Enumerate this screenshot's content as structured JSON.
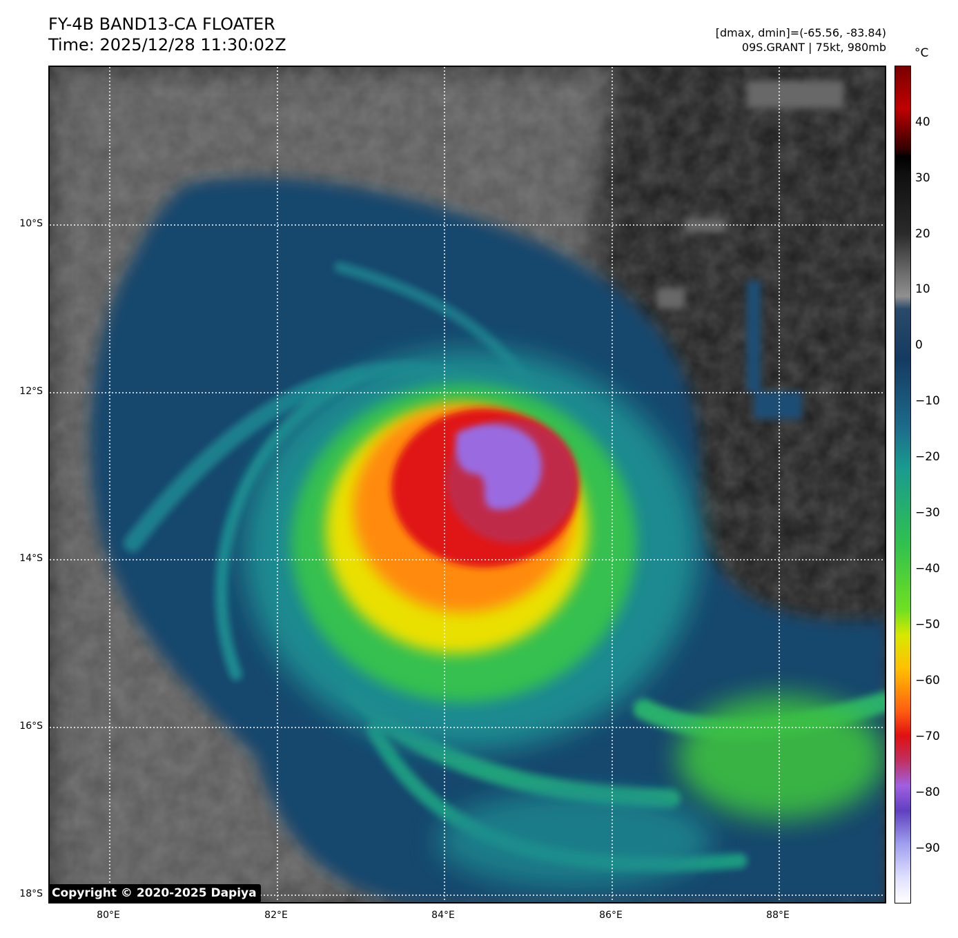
{
  "header": {
    "title_line1": "FY-4B BAND13-CA FLOATER",
    "title_line2": "Time: 2025/12/28 11:30:02Z",
    "stats_line": "[dmax, dmin]=(-65.56, -83.84)",
    "storm_line": "09S.GRANT | 75kt, 980mb"
  },
  "axes": {
    "y_ticks": [
      "10°S",
      "12°S",
      "14°S",
      "16°S",
      "18°S"
    ],
    "x_ticks": [
      "80°E",
      "82°E",
      "84°E",
      "86°E",
      "88°E"
    ]
  },
  "colorbar": {
    "unit": "°C",
    "labels": [
      "40",
      "30",
      "20",
      "10",
      "0",
      "−10",
      "−20",
      "−30",
      "−40",
      "−50",
      "−60",
      "−70",
      "−80",
      "−90"
    ]
  },
  "copyright": "Copyright © 2020-2025 Dapiya",
  "colors": {
    "clear_sky": "#1a1a1a",
    "low_cloud": "#6a6a6a",
    "cold_blue": "#16466c",
    "teal": "#1d8a90",
    "green": "#30c050",
    "yellow": "#f0e000",
    "red": "#e01818",
    "purple": "#9a6ae0"
  }
}
